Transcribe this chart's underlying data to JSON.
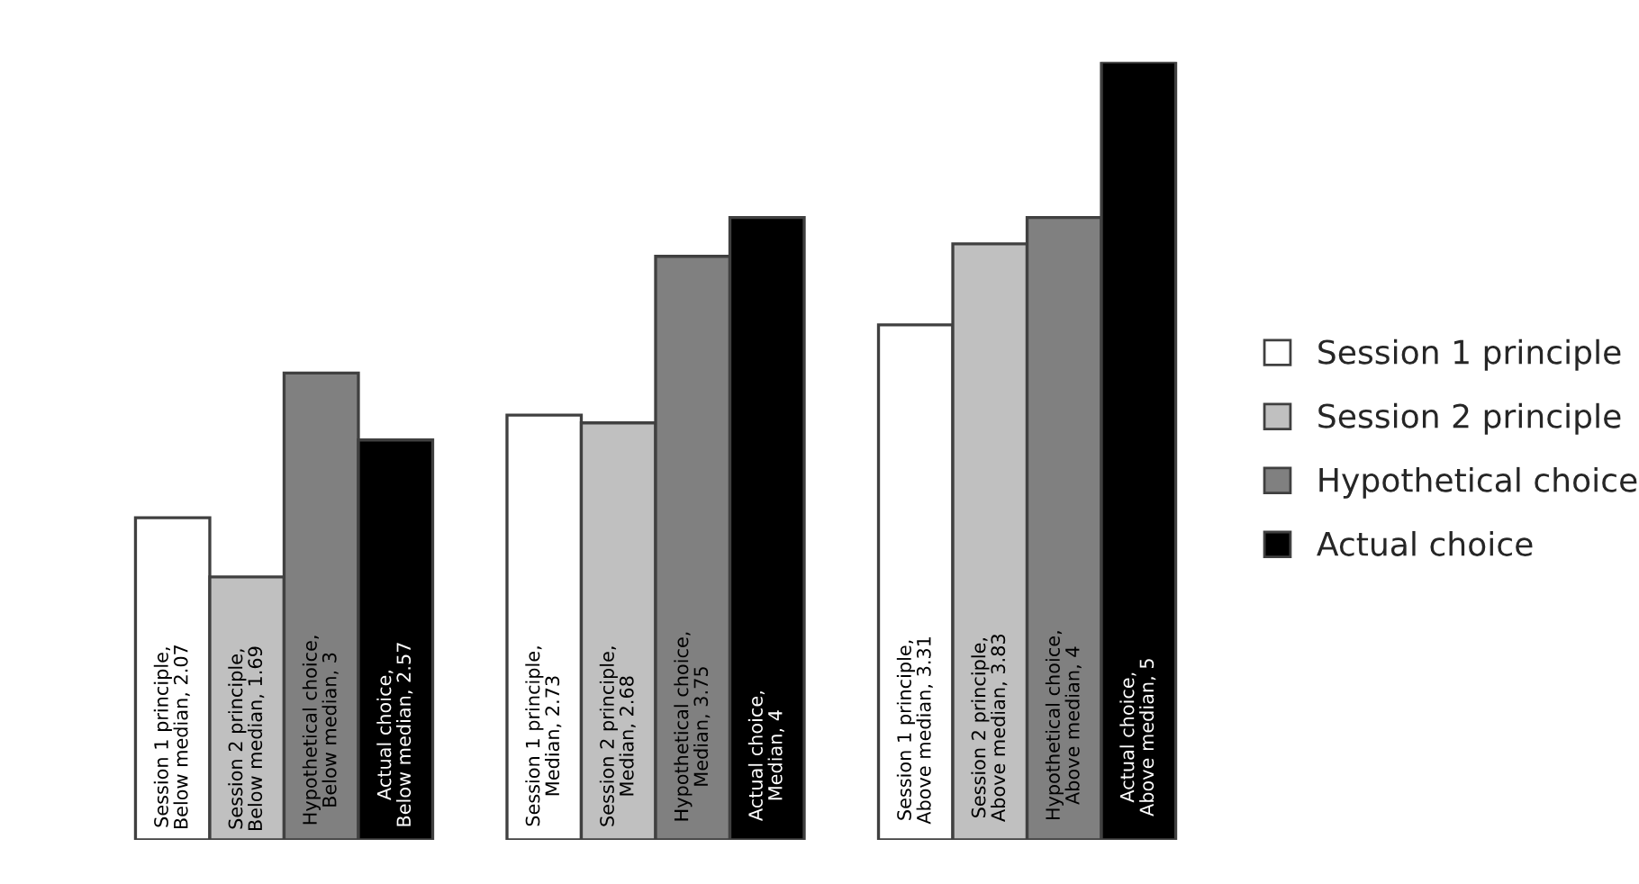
{
  "chart_data": {
    "type": "bar",
    "categories": [
      null,
      null,
      null
    ],
    "legend": "right",
    "series": [
      {
        "name": "Session 1 principle",
        "color": "#ffffff",
        "values": [
          2.07,
          2.73,
          3.31
        ],
        "value_labels": [
          "Session 1 principle, Below median, 2.07",
          "Session 1 principle, Median, 2.73",
          "Session 1 principle, Above median, 3.31"
        ]
      },
      {
        "name": "Session 2 principle",
        "color": "#c0c0c0",
        "values": [
          1.69,
          2.68,
          3.83
        ],
        "value_labels": [
          "Session 2 principle, Below median, 1.69",
          "Session 2 principle, Median, 2.68",
          "Session 2 principle, Above median, 3.83"
        ]
      },
      {
        "name": "Hypothetical choice",
        "color": "#808080",
        "values": [
          3,
          3.75,
          4
        ],
        "value_labels": [
          "Hypothetical choice, Below median, 3",
          "Hypothetical choice, Median, 3.75",
          "Hypothetical choice, Above median, 4"
        ]
      },
      {
        "name": "Actual choice",
        "color": "#000000",
        "values": [
          2.57,
          4,
          5
        ],
        "value_labels": [
          "Actual choice, Below median, 2.57",
          "Actual choice, Median, 4",
          "Actual choice, Above median, 5"
        ]
      }
    ]
  }
}
